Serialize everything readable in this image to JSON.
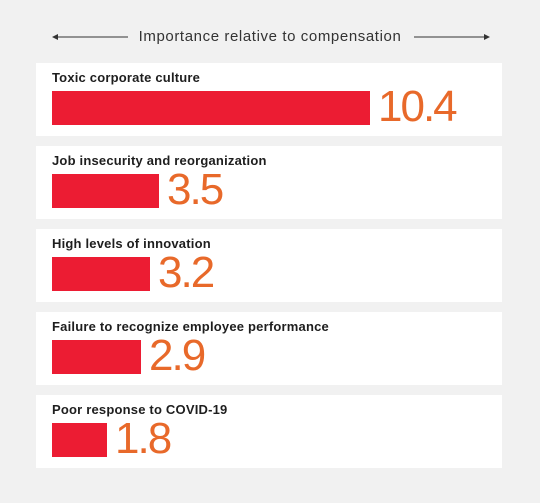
{
  "chart_data": {
    "type": "bar",
    "orientation": "horizontal",
    "title": "Importance relative to compensation",
    "categories": [
      "Toxic corporate culture",
      "Job insecurity and reorganization",
      "High levels of innovation",
      "Failure to recognize employee performance",
      "Poor response to COVID-19"
    ],
    "values": [
      10.4,
      3.5,
      3.2,
      2.9,
      1.8
    ],
    "value_labels": [
      "10.4",
      "3.5",
      "3.2",
      "2.9",
      "1.8"
    ],
    "xlim": [
      0,
      10.4
    ],
    "grid": false,
    "legend": "none"
  },
  "colors": {
    "bar": "#ec1c33",
    "value_text": "#e8692a",
    "card_background": "#ffffff",
    "page_background": "#f1f1f1"
  }
}
